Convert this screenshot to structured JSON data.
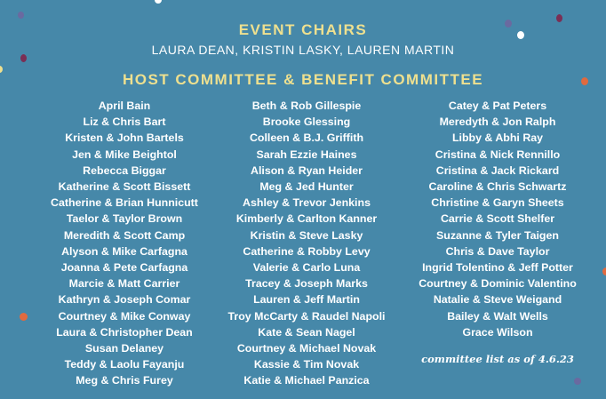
{
  "event_chairs": {
    "heading": "EVENT CHAIRS",
    "names": "LAURA DEAN, KRISTIN LASKY, LAUREN MARTIN"
  },
  "committee": {
    "heading": "HOST COMMITTEE & BENEFIT COMMITTEE",
    "col1": [
      "April Bain",
      "Liz & Chris Bart",
      "Kristen & John Bartels",
      "Jen & Mike Beightol",
      "Rebecca Biggar",
      "Katherine & Scott Bissett",
      "Catherine & Brian Hunnicutt",
      "Taelor & Taylor Brown",
      "Meredith & Scott Camp",
      "Alyson & Mike Carfagna",
      "Joanna & Pete Carfagna",
      "Marcie & Matt Carrier",
      "Kathryn & Joseph Comar",
      "Courtney & Mike Conway",
      "Laura & Christopher Dean",
      "Susan Delaney",
      "Teddy & Laolu Fayanju",
      "Meg & Chris Furey"
    ],
    "col2": [
      "Beth & Rob Gillespie",
      "Brooke Glessing",
      "Colleen & B.J. Griffith",
      "Sarah Ezzie Haines",
      "Alison & Ryan Heider",
      "Meg & Jed Hunter",
      "Ashley & Trevor Jenkins",
      "Kimberly & Carlton Kanner",
      "Kristin & Steve Lasky",
      "Catherine & Robby Levy",
      "Valerie & Carlo Luna",
      "Tracey & Joseph Marks",
      "Lauren & Jeff Martin",
      "Troy McCarty & Raudel Napoli",
      "Kate & Sean Nagel",
      "Courtney & Michael Novak",
      "Kassie & Tim Novak",
      "Katie & Michael Panzica"
    ],
    "col3": [
      "Catey & Pat Peters",
      "Meredyth & Jon Ralph",
      "Libby & Abhi Ray",
      "Cristina & Nick Rennillo",
      "Cristina & Jack Rickard",
      "Caroline & Chris Schwartz",
      "Christine & Garyn Sheets",
      "Carrie & Scott Shelfer",
      "Suzanne & Tyler Taigen",
      "Chris & Dave Taylor",
      "Ingrid Tolentino & Jeff Potter",
      "Courtney & Dominic Valentino",
      "Natalie & Steve Weigand",
      "Bailey & Walt Wells",
      "Grace Wilson"
    ],
    "note": "committee list as of 4.6.23"
  },
  "colors": {
    "background": "#4688a9",
    "heading": "#eee08f",
    "text": "#ffffff"
  }
}
